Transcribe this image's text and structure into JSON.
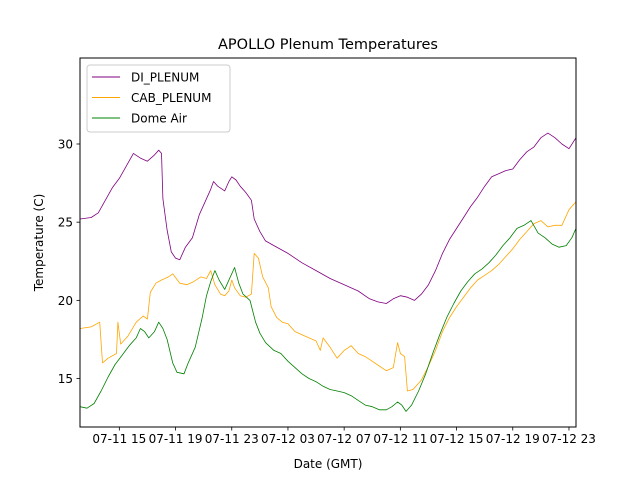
{
  "chart_data": {
    "type": "line",
    "title": "APOLLO Plenum Temperatures",
    "xlabel": "Date (GMT)",
    "ylabel": "Temperature (C)",
    "xlim": [
      12.2,
      47.5
    ],
    "ylim": [
      11.9,
      35.5
    ],
    "x_unit": "hours since 07-11 00:00 GMT",
    "x_ticks": [
      {
        "x": 15,
        "label": "07-11 15"
      },
      {
        "x": 19,
        "label": "07-11 19"
      },
      {
        "x": 23,
        "label": "07-11 23"
      },
      {
        "x": 27,
        "label": "07-12 03"
      },
      {
        "x": 31,
        "label": "07-12 07"
      },
      {
        "x": 35,
        "label": "07-12 11"
      },
      {
        "x": 39,
        "label": "07-12 15"
      },
      {
        "x": 43,
        "label": "07-12 19"
      },
      {
        "x": 47,
        "label": "07-12 23"
      }
    ],
    "y_ticks": [
      {
        "y": 15,
        "label": "15"
      },
      {
        "y": 20,
        "label": "20"
      },
      {
        "y": 25,
        "label": "25"
      },
      {
        "y": 30,
        "label": "30"
      }
    ],
    "legend_position": "top-left",
    "series": [
      {
        "name": "DI_PLENUM",
        "color": "#800080",
        "points": [
          [
            12.2,
            25.2
          ],
          [
            13.0,
            25.3
          ],
          [
            13.5,
            25.6
          ],
          [
            14.0,
            26.4
          ],
          [
            14.5,
            27.2
          ],
          [
            15.0,
            27.8
          ],
          [
            15.5,
            28.6
          ],
          [
            16.0,
            29.4
          ],
          [
            16.5,
            29.1
          ],
          [
            17.0,
            28.9
          ],
          [
            17.5,
            29.3
          ],
          [
            17.8,
            29.6
          ],
          [
            18.0,
            29.4
          ],
          [
            18.1,
            26.5
          ],
          [
            18.4,
            24.5
          ],
          [
            18.7,
            23.1
          ],
          [
            19.0,
            22.7
          ],
          [
            19.3,
            22.6
          ],
          [
            19.7,
            23.4
          ],
          [
            20.2,
            24.0
          ],
          [
            20.7,
            25.5
          ],
          [
            21.2,
            26.5
          ],
          [
            21.5,
            27.1
          ],
          [
            21.7,
            27.6
          ],
          [
            22.0,
            27.3
          ],
          [
            22.5,
            27.0
          ],
          [
            22.8,
            27.6
          ],
          [
            23.0,
            27.9
          ],
          [
            23.3,
            27.7
          ],
          [
            23.6,
            27.3
          ],
          [
            24.0,
            26.9
          ],
          [
            24.4,
            26.4
          ],
          [
            24.6,
            25.2
          ],
          [
            25.0,
            24.4
          ],
          [
            25.4,
            23.8
          ],
          [
            26.0,
            23.5
          ],
          [
            27.0,
            23.0
          ],
          [
            28.0,
            22.4
          ],
          [
            29.0,
            21.9
          ],
          [
            30.0,
            21.4
          ],
          [
            31.0,
            21.0
          ],
          [
            32.0,
            20.6
          ],
          [
            32.8,
            20.1
          ],
          [
            33.4,
            19.9
          ],
          [
            34.0,
            19.8
          ],
          [
            34.5,
            20.1
          ],
          [
            35.0,
            20.3
          ],
          [
            35.5,
            20.2
          ],
          [
            36.0,
            20.0
          ],
          [
            36.5,
            20.4
          ],
          [
            37.0,
            21.0
          ],
          [
            37.5,
            21.9
          ],
          [
            38.0,
            23.0
          ],
          [
            38.5,
            23.9
          ],
          [
            39.0,
            24.6
          ],
          [
            39.5,
            25.3
          ],
          [
            40.0,
            26.0
          ],
          [
            40.5,
            26.6
          ],
          [
            41.0,
            27.3
          ],
          [
            41.5,
            27.9
          ],
          [
            42.0,
            28.1
          ],
          [
            42.5,
            28.3
          ],
          [
            43.0,
            28.4
          ],
          [
            43.5,
            29.0
          ],
          [
            44.0,
            29.5
          ],
          [
            44.5,
            29.8
          ],
          [
            45.0,
            30.4
          ],
          [
            45.5,
            30.7
          ],
          [
            46.0,
            30.4
          ],
          [
            46.5,
            30.0
          ],
          [
            47.0,
            29.7
          ],
          [
            47.5,
            30.4
          ]
        ]
      },
      {
        "name": "CAB_PLENUM",
        "color": "#FFA500",
        "points": [
          [
            12.2,
            18.2
          ],
          [
            13.0,
            18.3
          ],
          [
            13.6,
            18.6
          ],
          [
            13.8,
            16.0
          ],
          [
            14.2,
            16.3
          ],
          [
            14.8,
            16.6
          ],
          [
            14.9,
            18.6
          ],
          [
            15.1,
            17.2
          ],
          [
            15.6,
            17.7
          ],
          [
            16.2,
            18.6
          ],
          [
            16.7,
            19.0
          ],
          [
            17.0,
            18.8
          ],
          [
            17.2,
            20.5
          ],
          [
            17.6,
            21.1
          ],
          [
            18.0,
            21.3
          ],
          [
            18.5,
            21.5
          ],
          [
            18.8,
            21.7
          ],
          [
            19.3,
            21.1
          ],
          [
            19.8,
            21.0
          ],
          [
            20.3,
            21.2
          ],
          [
            20.8,
            21.5
          ],
          [
            21.2,
            21.4
          ],
          [
            21.5,
            21.9
          ],
          [
            21.8,
            21.0
          ],
          [
            22.2,
            20.4
          ],
          [
            22.5,
            20.3
          ],
          [
            22.8,
            20.6
          ],
          [
            23.0,
            21.3
          ],
          [
            23.2,
            20.8
          ],
          [
            23.6,
            20.3
          ],
          [
            24.0,
            20.2
          ],
          [
            24.4,
            20.4
          ],
          [
            24.6,
            23.0
          ],
          [
            24.9,
            22.7
          ],
          [
            25.2,
            21.5
          ],
          [
            25.6,
            20.8
          ],
          [
            25.8,
            19.6
          ],
          [
            26.2,
            18.9
          ],
          [
            26.6,
            18.6
          ],
          [
            27.0,
            18.5
          ],
          [
            27.5,
            18.0
          ],
          [
            28.0,
            17.8
          ],
          [
            28.5,
            17.6
          ],
          [
            29.0,
            17.4
          ],
          [
            29.3,
            16.8
          ],
          [
            29.5,
            17.6
          ],
          [
            30.0,
            17.0
          ],
          [
            30.5,
            16.3
          ],
          [
            31.0,
            16.8
          ],
          [
            31.5,
            17.1
          ],
          [
            32.0,
            16.6
          ],
          [
            32.5,
            16.4
          ],
          [
            33.0,
            16.1
          ],
          [
            33.5,
            15.8
          ],
          [
            34.0,
            15.5
          ],
          [
            34.5,
            15.7
          ],
          [
            34.8,
            17.3
          ],
          [
            35.0,
            16.6
          ],
          [
            35.3,
            16.4
          ],
          [
            35.5,
            14.2
          ],
          [
            35.9,
            14.3
          ],
          [
            36.5,
            14.9
          ],
          [
            37.0,
            15.8
          ],
          [
            37.5,
            16.8
          ],
          [
            38.0,
            18.0
          ],
          [
            38.5,
            18.9
          ],
          [
            39.0,
            19.6
          ],
          [
            39.5,
            20.2
          ],
          [
            40.0,
            20.8
          ],
          [
            40.5,
            21.3
          ],
          [
            41.0,
            21.6
          ],
          [
            41.5,
            21.9
          ],
          [
            42.0,
            22.3
          ],
          [
            42.5,
            22.8
          ],
          [
            43.0,
            23.3
          ],
          [
            43.5,
            23.9
          ],
          [
            44.0,
            24.4
          ],
          [
            44.5,
            24.9
          ],
          [
            45.0,
            25.1
          ],
          [
            45.5,
            24.7
          ],
          [
            46.0,
            24.8
          ],
          [
            46.5,
            24.8
          ],
          [
            47.0,
            25.8
          ],
          [
            47.5,
            26.3
          ]
        ]
      },
      {
        "name": "Dome Air",
        "color": "#008000",
        "points": [
          [
            12.2,
            13.2
          ],
          [
            12.7,
            13.1
          ],
          [
            13.2,
            13.4
          ],
          [
            13.7,
            14.2
          ],
          [
            14.2,
            15.1
          ],
          [
            14.7,
            15.9
          ],
          [
            15.2,
            16.5
          ],
          [
            15.7,
            17.1
          ],
          [
            16.2,
            17.6
          ],
          [
            16.5,
            18.2
          ],
          [
            16.8,
            18.0
          ],
          [
            17.1,
            17.6
          ],
          [
            17.5,
            18.0
          ],
          [
            17.8,
            18.6
          ],
          [
            18.1,
            18.2
          ],
          [
            18.4,
            17.5
          ],
          [
            18.8,
            16.0
          ],
          [
            19.1,
            15.4
          ],
          [
            19.6,
            15.3
          ],
          [
            19.9,
            16.0
          ],
          [
            20.4,
            17.0
          ],
          [
            20.9,
            18.9
          ],
          [
            21.2,
            20.3
          ],
          [
            21.5,
            21.2
          ],
          [
            21.8,
            21.9
          ],
          [
            22.1,
            21.3
          ],
          [
            22.5,
            20.7
          ],
          [
            22.9,
            21.5
          ],
          [
            23.2,
            22.1
          ],
          [
            23.5,
            21.1
          ],
          [
            23.8,
            20.4
          ],
          [
            24.3,
            20.0
          ],
          [
            24.7,
            18.6
          ],
          [
            25.0,
            17.9
          ],
          [
            25.4,
            17.3
          ],
          [
            26.0,
            16.8
          ],
          [
            26.5,
            16.6
          ],
          [
            27.0,
            16.1
          ],
          [
            27.5,
            15.7
          ],
          [
            28.0,
            15.3
          ],
          [
            28.5,
            15.0
          ],
          [
            29.0,
            14.8
          ],
          [
            29.5,
            14.5
          ],
          [
            30.0,
            14.3
          ],
          [
            30.5,
            14.2
          ],
          [
            31.0,
            14.1
          ],
          [
            31.5,
            13.9
          ],
          [
            32.0,
            13.6
          ],
          [
            32.5,
            13.3
          ],
          [
            33.0,
            13.2
          ],
          [
            33.5,
            13.0
          ],
          [
            34.0,
            13.0
          ],
          [
            34.4,
            13.2
          ],
          [
            34.8,
            13.5
          ],
          [
            35.1,
            13.3
          ],
          [
            35.4,
            12.9
          ],
          [
            35.8,
            13.3
          ],
          [
            36.3,
            14.2
          ],
          [
            36.8,
            15.3
          ],
          [
            37.3,
            16.6
          ],
          [
            37.8,
            17.8
          ],
          [
            38.3,
            18.9
          ],
          [
            38.8,
            19.8
          ],
          [
            39.3,
            20.6
          ],
          [
            39.8,
            21.2
          ],
          [
            40.3,
            21.7
          ],
          [
            40.8,
            22.0
          ],
          [
            41.3,
            22.4
          ],
          [
            41.8,
            22.9
          ],
          [
            42.3,
            23.5
          ],
          [
            42.8,
            24.0
          ],
          [
            43.3,
            24.6
          ],
          [
            43.8,
            24.8
          ],
          [
            44.3,
            25.1
          ],
          [
            44.8,
            24.3
          ],
          [
            45.3,
            24.0
          ],
          [
            45.8,
            23.6
          ],
          [
            46.3,
            23.4
          ],
          [
            46.8,
            23.5
          ],
          [
            47.2,
            24.0
          ],
          [
            47.5,
            24.6
          ]
        ]
      }
    ]
  }
}
